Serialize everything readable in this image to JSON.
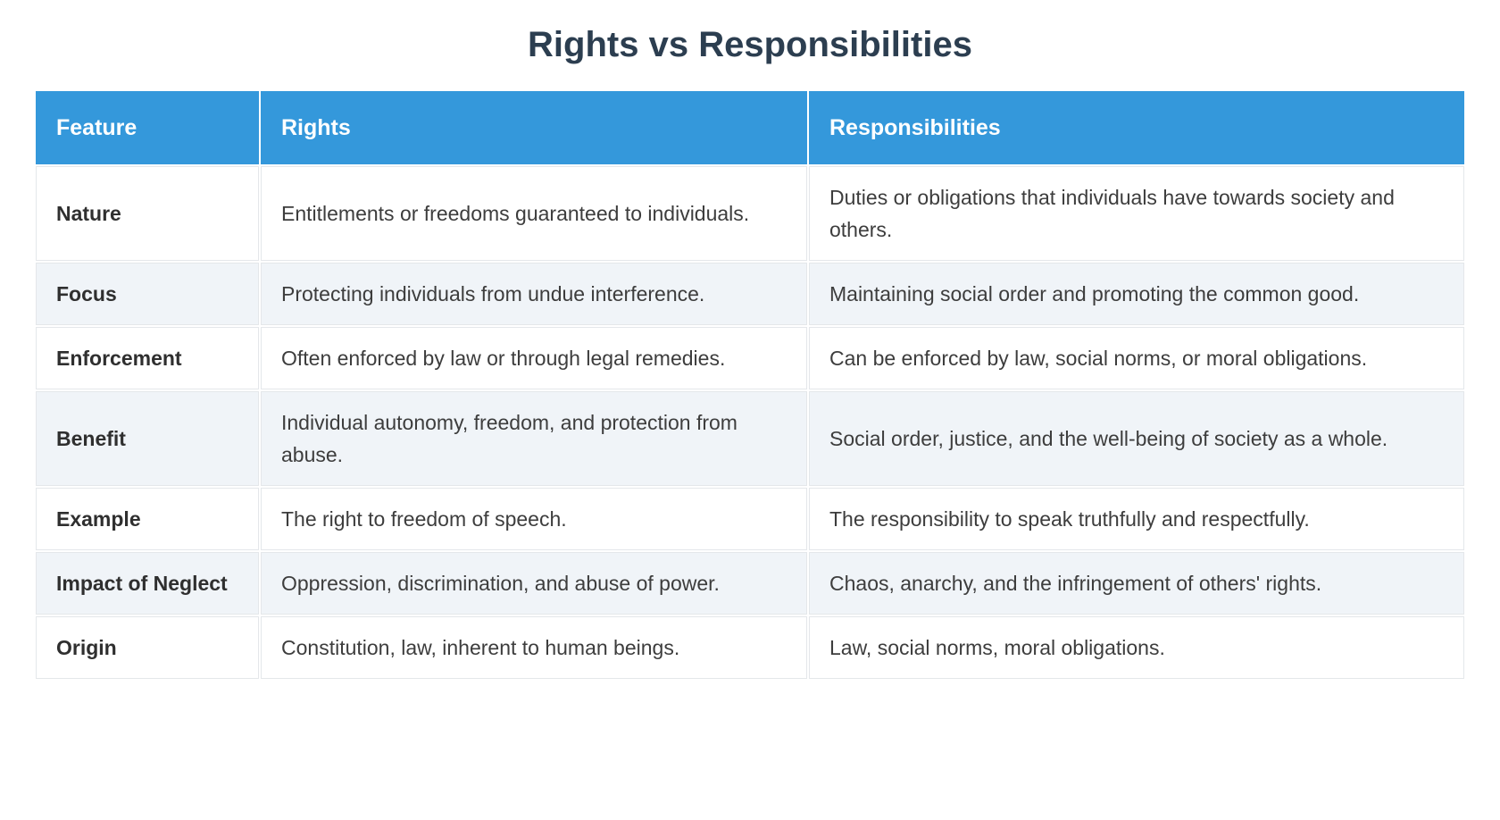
{
  "page": {
    "title": "Rights vs Responsibilities"
  },
  "colors": {
    "header_bg": "#3498db",
    "header_text": "#ffffff",
    "title_text": "#2c3e50",
    "row_alt_bg": "#f0f4f8",
    "row_bg": "#ffffff",
    "border": "#e4e7ea",
    "body_text": "#3d3d3d"
  },
  "table": {
    "columns": [
      {
        "label": "Feature"
      },
      {
        "label": "Rights"
      },
      {
        "label": "Responsibilities"
      }
    ],
    "rows": [
      {
        "feature": "Nature",
        "rights": "Entitlements or freedoms guaranteed to individuals.",
        "responsibilities": "Duties or obligations that individuals have towards society and others."
      },
      {
        "feature": "Focus",
        "rights": "Protecting individuals from undue interference.",
        "responsibilities": "Maintaining social order and promoting the common good."
      },
      {
        "feature": "Enforcement",
        "rights": "Often enforced by law or through legal remedies.",
        "responsibilities": "Can be enforced by law, social norms, or moral obligations."
      },
      {
        "feature": "Benefit",
        "rights": "Individual autonomy, freedom, and protection from abuse.",
        "responsibilities": "Social order, justice, and the well-being of society as a whole."
      },
      {
        "feature": "Example",
        "rights": "The right to freedom of speech.",
        "responsibilities": "The responsibility to speak truthfully and respectfully."
      },
      {
        "feature": "Impact of Neglect",
        "rights": "Oppression, discrimination, and abuse of power.",
        "responsibilities": "Chaos, anarchy, and the infringement of others' rights."
      },
      {
        "feature": "Origin",
        "rights": "Constitution, law, inherent to human beings.",
        "responsibilities": "Law, social norms, moral obligations."
      }
    ]
  }
}
